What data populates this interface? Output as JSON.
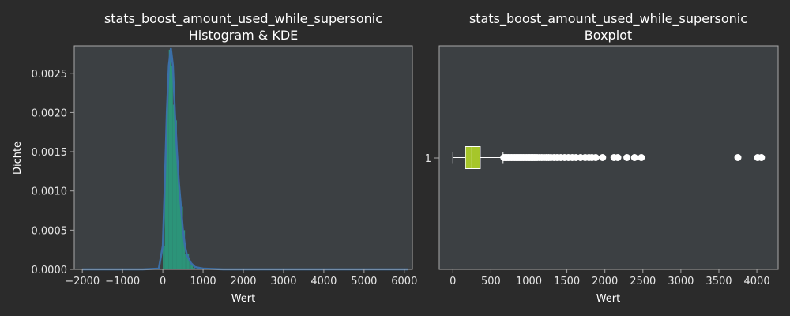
{
  "colors": {
    "figure_bg": "#2b2b2b",
    "axes_bg": "#3c4043",
    "spine": "#a8a8a8",
    "hist_fill": "#2a9d7f",
    "kde_line": "#3b6fa8",
    "box_fill": "#a6c62a",
    "outlier": "#ffffff"
  },
  "chart_data": [
    {
      "type": "histogram",
      "title": "stats_boost_amount_used_while_supersonic",
      "subtitle": "Histogram & KDE",
      "xlabel": "Wert",
      "ylabel": "Dichte",
      "xlim": [
        -2200,
        6200
      ],
      "ylim": [
        0,
        0.00285
      ],
      "x_ticks": [
        -2000,
        -1000,
        0,
        1000,
        2000,
        3000,
        4000,
        5000,
        6000
      ],
      "x_tick_labels": [
        "−2000",
        "−1000",
        "0",
        "1000",
        "2000",
        "3000",
        "4000",
        "5000",
        "6000"
      ],
      "y_ticks": [
        0,
        0.0005,
        0.001,
        0.0015,
        0.002,
        0.0025
      ],
      "y_tick_labels": [
        "0.0000",
        "0.0005",
        "0.0010",
        "0.0015",
        "0.0020",
        "0.0025"
      ],
      "grid": false,
      "bins": [
        {
          "x0": 0,
          "x1": 50,
          "density": 0.0003
        },
        {
          "x0": 50,
          "x1": 100,
          "density": 0.0015
        },
        {
          "x0": 100,
          "x1": 150,
          "density": 0.0024
        },
        {
          "x0": 150,
          "x1": 200,
          "density": 0.0028
        },
        {
          "x0": 200,
          "x1": 250,
          "density": 0.0026
        },
        {
          "x0": 250,
          "x1": 300,
          "density": 0.0021
        },
        {
          "x0": 300,
          "x1": 350,
          "density": 0.0019
        },
        {
          "x0": 350,
          "x1": 400,
          "density": 0.0013
        },
        {
          "x0": 400,
          "x1": 450,
          "density": 0.0009
        },
        {
          "x0": 450,
          "x1": 500,
          "density": 0.0008
        },
        {
          "x0": 500,
          "x1": 550,
          "density": 0.0005
        },
        {
          "x0": 550,
          "x1": 600,
          "density": 0.0002
        },
        {
          "x0": 600,
          "x1": 650,
          "density": 0.0002
        },
        {
          "x0": 650,
          "x1": 700,
          "density": 0.0001
        },
        {
          "x0": 700,
          "x1": 750,
          "density": 5e-05
        },
        {
          "x0": 750,
          "x1": 800,
          "density": 2e-05
        }
      ],
      "kde": [
        [
          -2000,
          0
        ],
        [
          -500,
          0
        ],
        [
          -100,
          1e-05
        ],
        [
          0,
          0.0003
        ],
        [
          50,
          0.0011
        ],
        [
          100,
          0.002
        ],
        [
          150,
          0.0026
        ],
        [
          200,
          0.00282
        ],
        [
          250,
          0.0026
        ],
        [
          300,
          0.002
        ],
        [
          350,
          0.0015
        ],
        [
          400,
          0.0011
        ],
        [
          450,
          0.0008
        ],
        [
          500,
          0.0005
        ],
        [
          550,
          0.0003
        ],
        [
          600,
          0.00018
        ],
        [
          700,
          8e-05
        ],
        [
          800,
          3e-05
        ],
        [
          1000,
          1e-05
        ],
        [
          1500,
          0
        ],
        [
          6100,
          0
        ]
      ]
    },
    {
      "type": "boxplot",
      "title": "stats_boost_amount_used_while_supersonic",
      "subtitle": "Boxplot",
      "xlabel": "Wert",
      "category_label": "1",
      "xlim": [
        -180,
        4280
      ],
      "x_ticks": [
        0,
        500,
        1000,
        1500,
        2000,
        2500,
        3000,
        3500,
        4000
      ],
      "x_tick_labels": [
        "0",
        "500",
        "1000",
        "1500",
        "2000",
        "2500",
        "3000",
        "3500",
        "4000"
      ],
      "grid": false,
      "box": {
        "whisker_low": 0,
        "q1": 165,
        "median": 250,
        "q3": 360,
        "whisker_high": 660
      },
      "outliers": [
        670,
        690,
        710,
        730,
        750,
        770,
        790,
        810,
        830,
        850,
        870,
        890,
        910,
        930,
        950,
        970,
        990,
        1010,
        1030,
        1050,
        1070,
        1090,
        1110,
        1140,
        1170,
        1200,
        1230,
        1260,
        1290,
        1330,
        1370,
        1420,
        1470,
        1520,
        1570,
        1620,
        1680,
        1740,
        1790,
        1830,
        1880,
        1970,
        2120,
        2170,
        2290,
        2390,
        2480,
        3750,
        4010,
        4060
      ]
    }
  ]
}
